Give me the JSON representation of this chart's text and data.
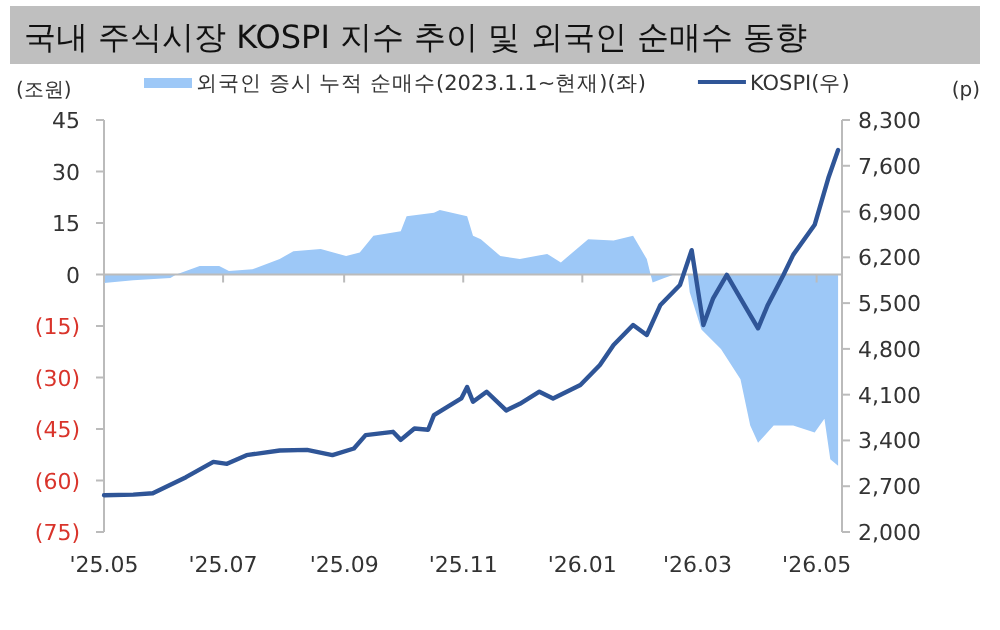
{
  "chart_data": {
    "type": "area",
    "title": "국내 주식시장 KOSPI 지수 추이 및 외국인 순매수 동향",
    "ylabel": "(조원)",
    "y2label": "(p)",
    "legend": "top",
    "xlim": [
      "2025-05-01",
      "2026-05-14"
    ],
    "xticks": [
      {
        "value": "2025-05-01",
        "label": "'25.05"
      },
      {
        "value": "2025-07-01",
        "label": "'25.07"
      },
      {
        "value": "2025-09-01",
        "label": "'25.09"
      },
      {
        "value": "2025-11-01",
        "label": "'25.11"
      },
      {
        "value": "2026-01-01",
        "label": "'26.01"
      },
      {
        "value": "2026-03-01",
        "label": "'26.03"
      },
      {
        "value": "2026-05-01",
        "label": "'26.05"
      }
    ],
    "ylim": [
      -75,
      45
    ],
    "yticks": [
      {
        "value": -75,
        "label": "(75)"
      },
      {
        "value": -60,
        "label": "(60)"
      },
      {
        "value": -45,
        "label": "(45)"
      },
      {
        "value": -30,
        "label": "(30)"
      },
      {
        "value": -15,
        "label": "(15)"
      },
      0,
      15,
      30,
      45
    ],
    "y2lim": [
      2000,
      8300
    ],
    "y2ticks": [
      {
        "value": 2000,
        "label": "2,000"
      },
      {
        "value": 2700,
        "label": "2,700"
      },
      {
        "value": 3400,
        "label": "3,400"
      },
      {
        "value": 4100,
        "label": "4,100"
      },
      {
        "value": 4800,
        "label": "4,800"
      },
      {
        "value": 5500,
        "label": "5,500"
      },
      {
        "value": 6200,
        "label": "6,200"
      },
      {
        "value": 6900,
        "label": "6,900"
      },
      {
        "value": 7600,
        "label": "7,600"
      },
      {
        "value": 8300,
        "label": "8,300"
      }
    ],
    "series": [
      {
        "name": "외국인 증시 누적 순매수(2023.1.1~현재)(좌)",
        "type": "area",
        "color": "#9dc8f7",
        "x": [
          "2025-05-01",
          "2025-05-16",
          "2025-06-04",
          "2025-06-07",
          "2025-06-19",
          "2025-06-29",
          "2025-07-04",
          "2025-07-16",
          "2025-07-30",
          "2025-08-06",
          "2025-08-20",
          "2025-09-02",
          "2025-09-09",
          "2025-09-16",
          "2025-09-30",
          "2025-10-03",
          "2025-10-17",
          "2025-10-20",
          "2025-11-03",
          "2025-11-06",
          "2025-11-10",
          "2025-11-20",
          "2025-11-30",
          "2025-12-14",
          "2025-12-21",
          "2026-01-04",
          "2026-01-17",
          "2026-01-27",
          "2026-02-03",
          "2026-02-06",
          "2026-02-12",
          "2026-02-17",
          "2026-02-24",
          "2026-02-25",
          "2026-03-03",
          "2026-03-13",
          "2026-03-23",
          "2026-03-28",
          "2026-04-01",
          "2026-04-09",
          "2026-04-19",
          "2026-04-30",
          "2026-05-05",
          "2026-05-08",
          "2026-05-12"
        ],
        "values": [
          -2.5,
          -1.7,
          -1,
          0,
          2.5,
          2.5,
          1,
          1.5,
          4.5,
          6.8,
          7.4,
          5.4,
          6.4,
          11.3,
          12.6,
          17,
          18,
          18.8,
          17,
          11.3,
          10.3,
          5.4,
          4.5,
          6,
          3.5,
          10.3,
          9.9,
          11.3,
          4.5,
          -2.3,
          -1,
          0,
          0,
          -5.2,
          -16,
          -21.7,
          -30.5,
          -44,
          -49,
          -44,
          -44,
          -46,
          -42,
          -53.8,
          -55.7
        ]
      },
      {
        "name": "KOSPI(우)",
        "type": "line",
        "axis": "y2",
        "color": "#2f5597",
        "x": [
          "2025-05-01",
          "2025-05-16",
          "2025-05-26",
          "2025-06-12",
          "2025-06-26",
          "2025-07-03",
          "2025-07-13",
          "2025-07-30",
          "2025-08-13",
          "2025-08-26",
          "2025-09-06",
          "2025-09-12",
          "2025-09-26",
          "2025-09-30",
          "2025-10-07",
          "2025-10-14",
          "2025-10-17",
          "2025-10-31",
          "2025-11-03",
          "2025-11-06",
          "2025-11-13",
          "2025-11-23",
          "2025-11-30",
          "2025-12-10",
          "2025-12-17",
          "2025-12-31",
          "2026-01-10",
          "2026-01-17",
          "2026-01-27",
          "2026-02-03",
          "2026-02-10",
          "2026-02-20",
          "2026-02-26",
          "2026-03-04",
          "2026-03-09",
          "2026-03-16",
          "2026-03-23",
          "2026-04-01",
          "2026-04-06",
          "2026-04-14",
          "2026-04-19",
          "2026-04-30",
          "2026-05-07",
          "2026-05-12"
        ],
        "values": [
          2562,
          2572,
          2593,
          2838,
          3073,
          3042,
          3175,
          3246,
          3256,
          3175,
          3277,
          3481,
          3532,
          3409,
          3583,
          3563,
          3787,
          4042,
          4216,
          3991,
          4145,
          3859,
          3961,
          4145,
          4042,
          4247,
          4553,
          4859,
          5165,
          5012,
          5472,
          5778,
          6309,
          5165,
          5574,
          5931,
          5574,
          5115,
          5472,
          5931,
          6238,
          6697,
          7412,
          7841
        ]
      }
    ]
  }
}
